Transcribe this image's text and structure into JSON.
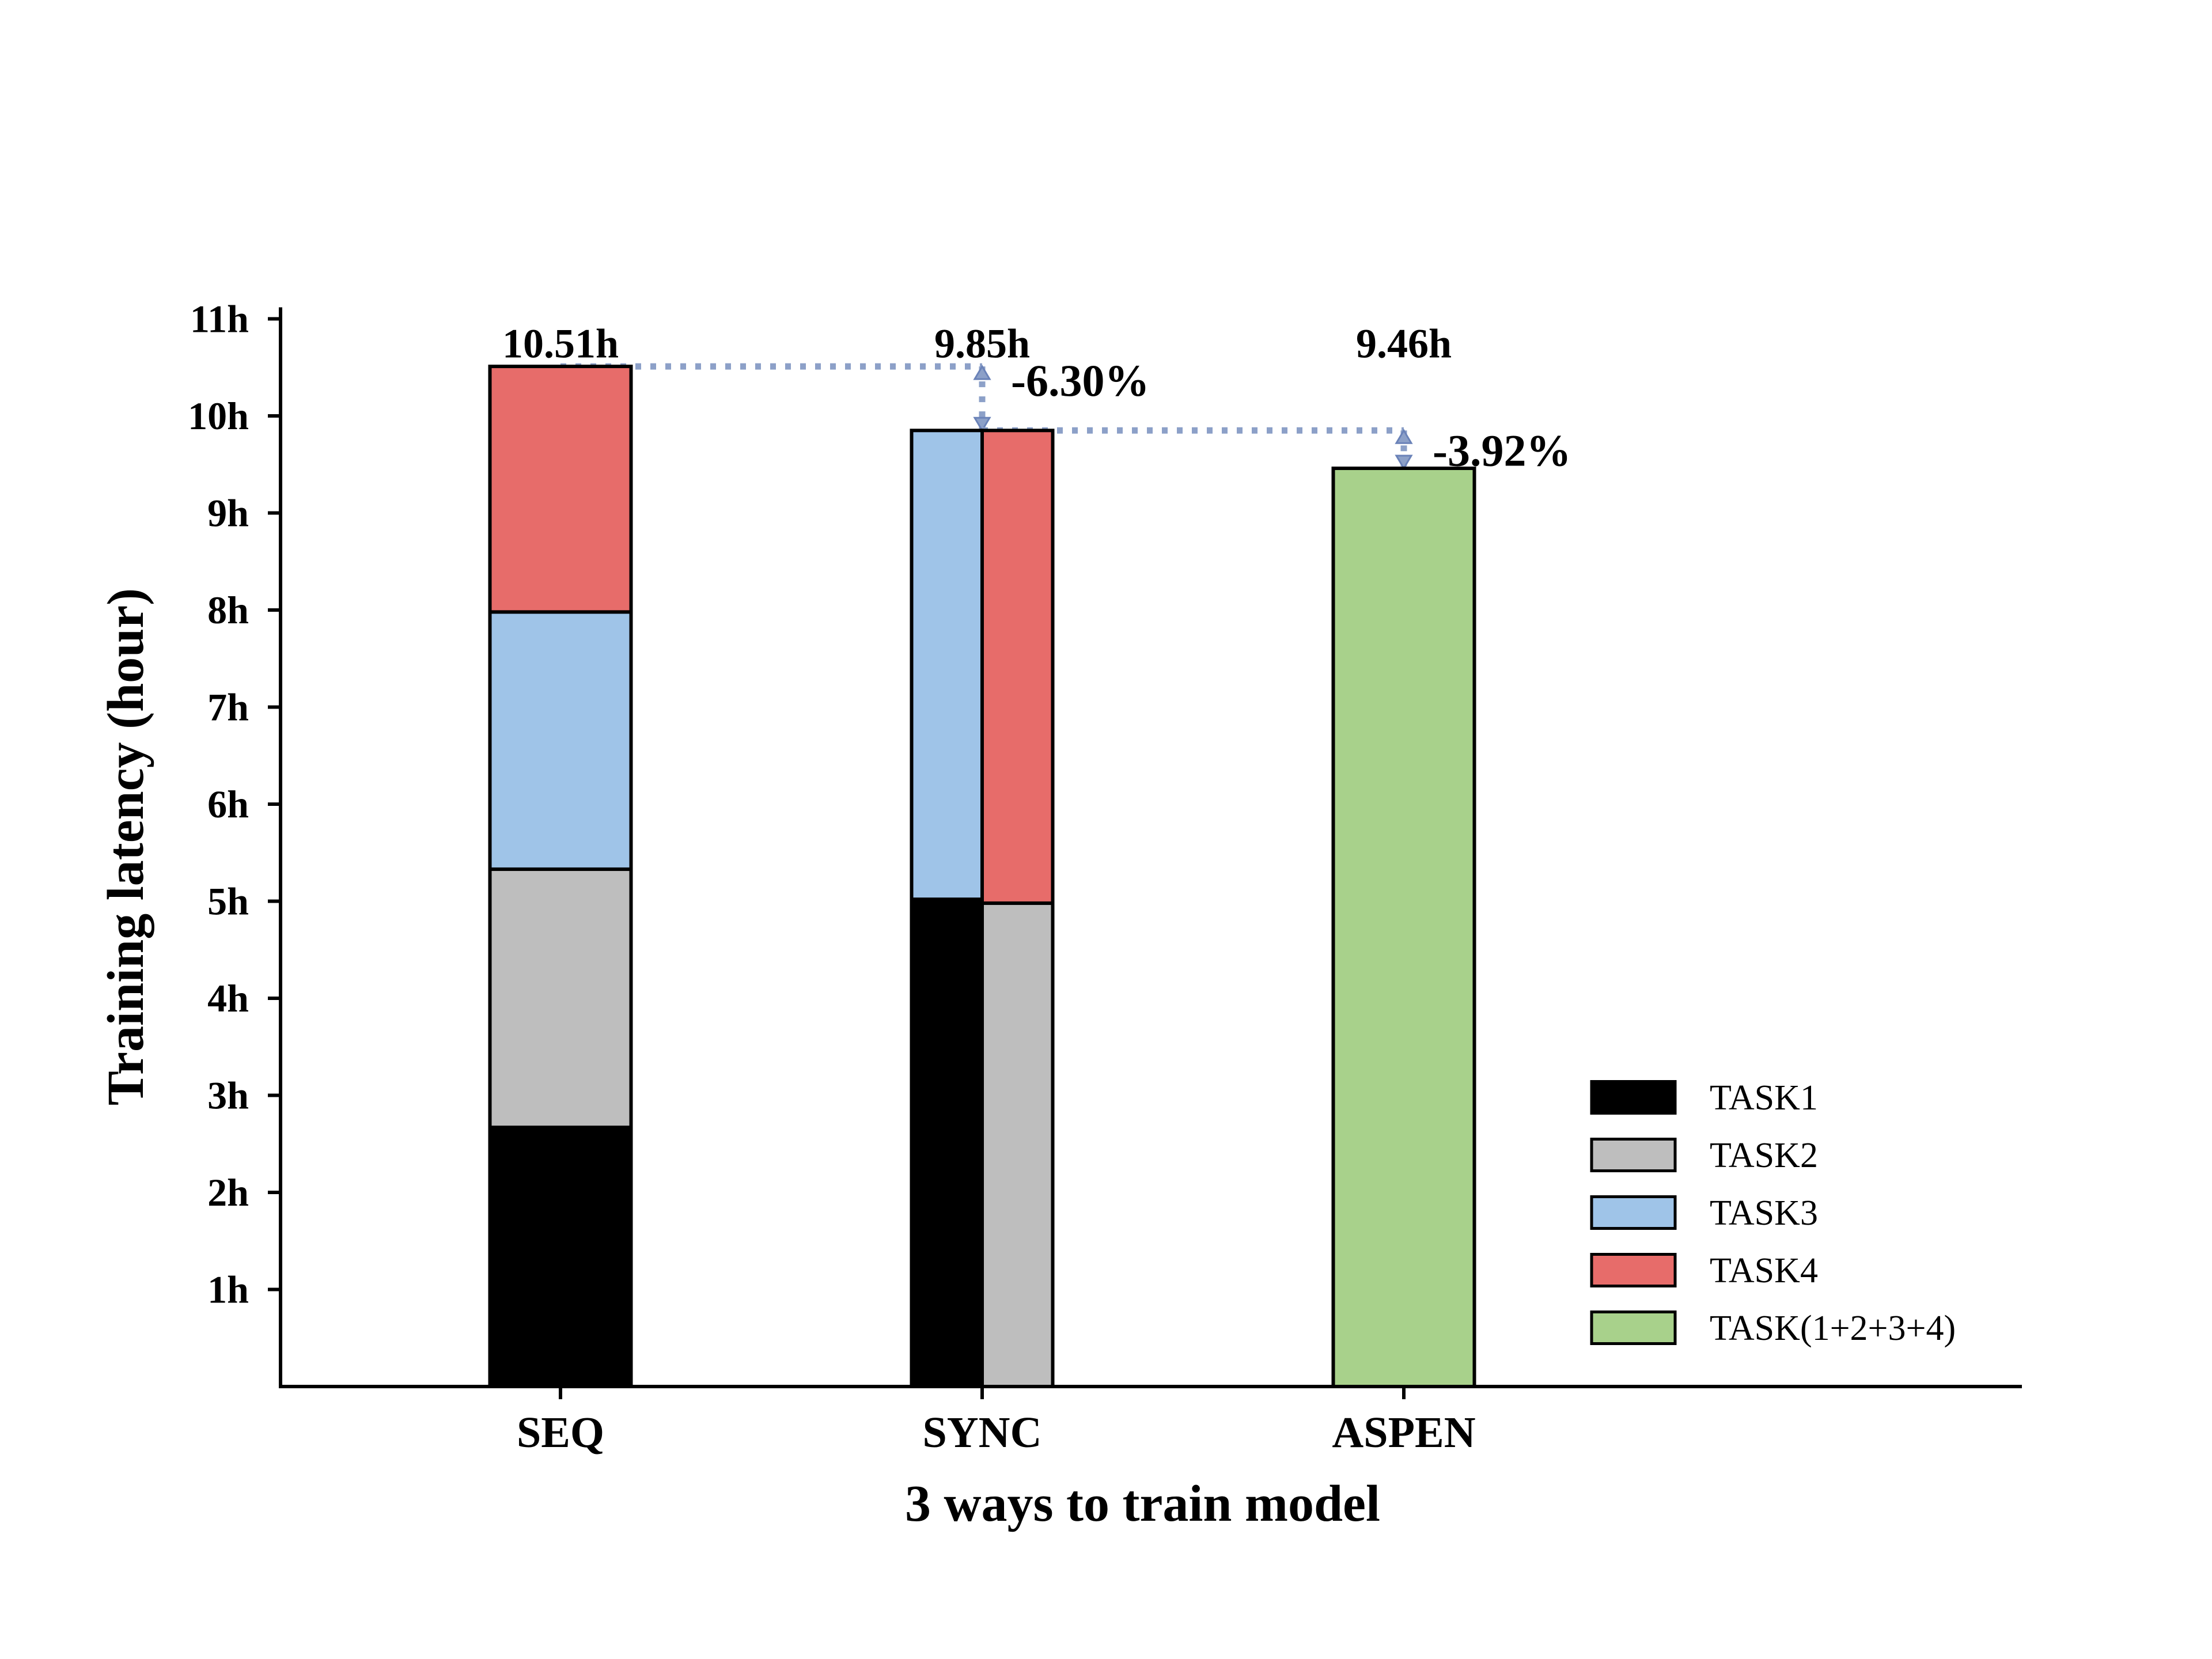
{
  "chart_data": {
    "type": "bar",
    "stacked": true,
    "categories": [
      "SEQ",
      "SYNC",
      "ASPEN"
    ],
    "xlabel": "3 ways to train model",
    "ylabel": "Training latency (hour)",
    "ylim": [
      0,
      11
    ],
    "yticks": [
      1,
      2,
      3,
      4,
      5,
      6,
      7,
      8,
      9,
      10,
      11
    ],
    "ytick_labels": [
      "1h",
      "2h",
      "3h",
      "4h",
      "5h",
      "6h",
      "7h",
      "8h",
      "9h",
      "10h",
      "11h"
    ],
    "grid": false,
    "legend_position": "bottom-right",
    "series": [
      {
        "name": "TASK1",
        "color": "#000000"
      },
      {
        "name": "TASK2",
        "color": "#bebebe"
      },
      {
        "name": "TASK3",
        "color": "#9fc4e8"
      },
      {
        "name": "TASK4",
        "color": "#e76c6a"
      },
      {
        "name": "TASK(1+2+3+4)",
        "color": "#a8d18b"
      }
    ],
    "bars": [
      {
        "category": "SEQ",
        "segments": [
          {
            "series": "TASK1",
            "start": 0,
            "end": 2.67
          },
          {
            "series": "TASK2",
            "start": 2.67,
            "end": 5.33
          },
          {
            "series": "TASK3",
            "start": 5.33,
            "end": 7.98
          },
          {
            "series": "TASK4",
            "start": 7.98,
            "end": 10.51
          }
        ],
        "total": 10.51,
        "total_label": "10.51h"
      },
      {
        "category": "SYNC",
        "columns": [
          [
            {
              "series": "TASK1",
              "start": 0,
              "end": 5.02
            },
            {
              "series": "TASK3",
              "start": 5.02,
              "end": 9.85
            }
          ],
          [
            {
              "series": "TASK2",
              "start": 0,
              "end": 4.98
            },
            {
              "series": "TASK4",
              "start": 4.98,
              "end": 9.85
            }
          ]
        ],
        "total": 9.85,
        "total_label": "9.85h",
        "change_label": "-6.30%"
      },
      {
        "category": "ASPEN",
        "segments": [
          {
            "series": "TASK(1+2+3+4)",
            "start": 0,
            "end": 9.46
          }
        ],
        "total": 9.46,
        "total_label": "9.46h",
        "change_label": "-3.92%"
      }
    ]
  }
}
